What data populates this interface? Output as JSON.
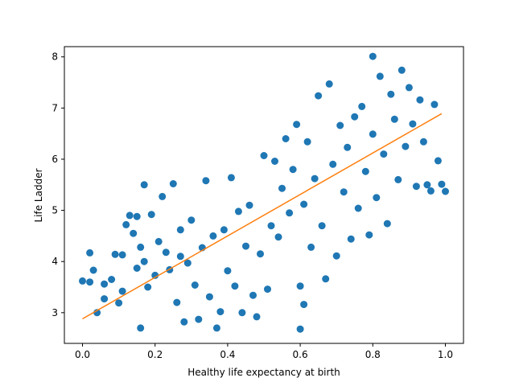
{
  "chart_data": {
    "type": "scatter",
    "xlabel": "Healthy life expectancy at birth",
    "ylabel": "Life Ladder",
    "xlim": [
      -0.05,
      1.05
    ],
    "ylim": [
      2.4,
      8.2
    ],
    "xticks": [
      0.0,
      0.2,
      0.4,
      0.6,
      0.8,
      1.0
    ],
    "xtick_labels": [
      "0.0",
      "0.2",
      "0.4",
      "0.6",
      "0.8",
      "1.0"
    ],
    "yticks": [
      3,
      4,
      5,
      6,
      7,
      8
    ],
    "ytick_labels": [
      "3",
      "4",
      "5",
      "6",
      "7",
      "8"
    ],
    "grid": false,
    "colors": {
      "points": "#1f77b4",
      "fit_line": "#ff7f0e"
    },
    "fit_line": {
      "x": [
        0.0,
        0.99
      ],
      "y": [
        2.88,
        6.89
      ]
    },
    "series": [
      {
        "points": [
          [
            0.0,
            3.62
          ],
          [
            0.02,
            3.6
          ],
          [
            0.02,
            4.17
          ],
          [
            0.03,
            3.83
          ],
          [
            0.04,
            3.0
          ],
          [
            0.06,
            3.27
          ],
          [
            0.06,
            3.56
          ],
          [
            0.08,
            3.65
          ],
          [
            0.09,
            4.14
          ],
          [
            0.1,
            3.19
          ],
          [
            0.11,
            3.42
          ],
          [
            0.11,
            4.13
          ],
          [
            0.12,
            4.72
          ],
          [
            0.13,
            4.9
          ],
          [
            0.14,
            4.55
          ],
          [
            0.15,
            3.87
          ],
          [
            0.15,
            4.88
          ],
          [
            0.16,
            4.28
          ],
          [
            0.16,
            2.7
          ],
          [
            0.17,
            4.0
          ],
          [
            0.17,
            5.5
          ],
          [
            0.18,
            3.5
          ],
          [
            0.19,
            4.92
          ],
          [
            0.2,
            3.73
          ],
          [
            0.21,
            4.39
          ],
          [
            0.22,
            5.27
          ],
          [
            0.23,
            4.18
          ],
          [
            0.24,
            3.84
          ],
          [
            0.25,
            5.52
          ],
          [
            0.26,
            3.2
          ],
          [
            0.27,
            4.1
          ],
          [
            0.27,
            4.62
          ],
          [
            0.28,
            2.82
          ],
          [
            0.29,
            3.97
          ],
          [
            0.3,
            4.81
          ],
          [
            0.31,
            3.54
          ],
          [
            0.32,
            2.87
          ],
          [
            0.33,
            4.27
          ],
          [
            0.34,
            5.58
          ],
          [
            0.35,
            3.31
          ],
          [
            0.36,
            4.5
          ],
          [
            0.37,
            2.7
          ],
          [
            0.38,
            3.02
          ],
          [
            0.39,
            4.62
          ],
          [
            0.4,
            3.82
          ],
          [
            0.41,
            5.64
          ],
          [
            0.42,
            3.52
          ],
          [
            0.43,
            4.98
          ],
          [
            0.44,
            3.0
          ],
          [
            0.45,
            4.3
          ],
          [
            0.46,
            5.1
          ],
          [
            0.47,
            3.34
          ],
          [
            0.48,
            2.92
          ],
          [
            0.49,
            4.15
          ],
          [
            0.5,
            6.07
          ],
          [
            0.51,
            3.46
          ],
          [
            0.52,
            4.7
          ],
          [
            0.53,
            5.96
          ],
          [
            0.54,
            4.48
          ],
          [
            0.55,
            5.43
          ],
          [
            0.56,
            6.4
          ],
          [
            0.57,
            4.95
          ],
          [
            0.58,
            5.8
          ],
          [
            0.59,
            6.68
          ],
          [
            0.6,
            3.52
          ],
          [
            0.6,
            2.68
          ],
          [
            0.61,
            3.16
          ],
          [
            0.61,
            5.12
          ],
          [
            0.62,
            6.34
          ],
          [
            0.63,
            4.28
          ],
          [
            0.64,
            5.62
          ],
          [
            0.65,
            7.24
          ],
          [
            0.66,
            4.7
          ],
          [
            0.67,
            3.66
          ],
          [
            0.68,
            7.47
          ],
          [
            0.69,
            5.9
          ],
          [
            0.7,
            4.11
          ],
          [
            0.71,
            6.66
          ],
          [
            0.72,
            5.36
          ],
          [
            0.73,
            6.23
          ],
          [
            0.74,
            4.44
          ],
          [
            0.75,
            6.83
          ],
          [
            0.76,
            5.04
          ],
          [
            0.77,
            7.03
          ],
          [
            0.78,
            5.76
          ],
          [
            0.79,
            4.52
          ],
          [
            0.8,
            8.01
          ],
          [
            0.8,
            6.49
          ],
          [
            0.81,
            5.25
          ],
          [
            0.82,
            7.62
          ],
          [
            0.83,
            6.1
          ],
          [
            0.84,
            4.74
          ],
          [
            0.85,
            7.27
          ],
          [
            0.86,
            6.78
          ],
          [
            0.87,
            5.6
          ],
          [
            0.88,
            7.74
          ],
          [
            0.89,
            6.25
          ],
          [
            0.9,
            7.4
          ],
          [
            0.91,
            6.69
          ],
          [
            0.92,
            5.47
          ],
          [
            0.93,
            7.16
          ],
          [
            0.94,
            6.34
          ],
          [
            0.95,
            5.5
          ],
          [
            0.96,
            5.38
          ],
          [
            0.97,
            7.07
          ],
          [
            0.98,
            5.97
          ],
          [
            0.99,
            5.51
          ],
          [
            1.0,
            5.37
          ]
        ]
      }
    ]
  }
}
